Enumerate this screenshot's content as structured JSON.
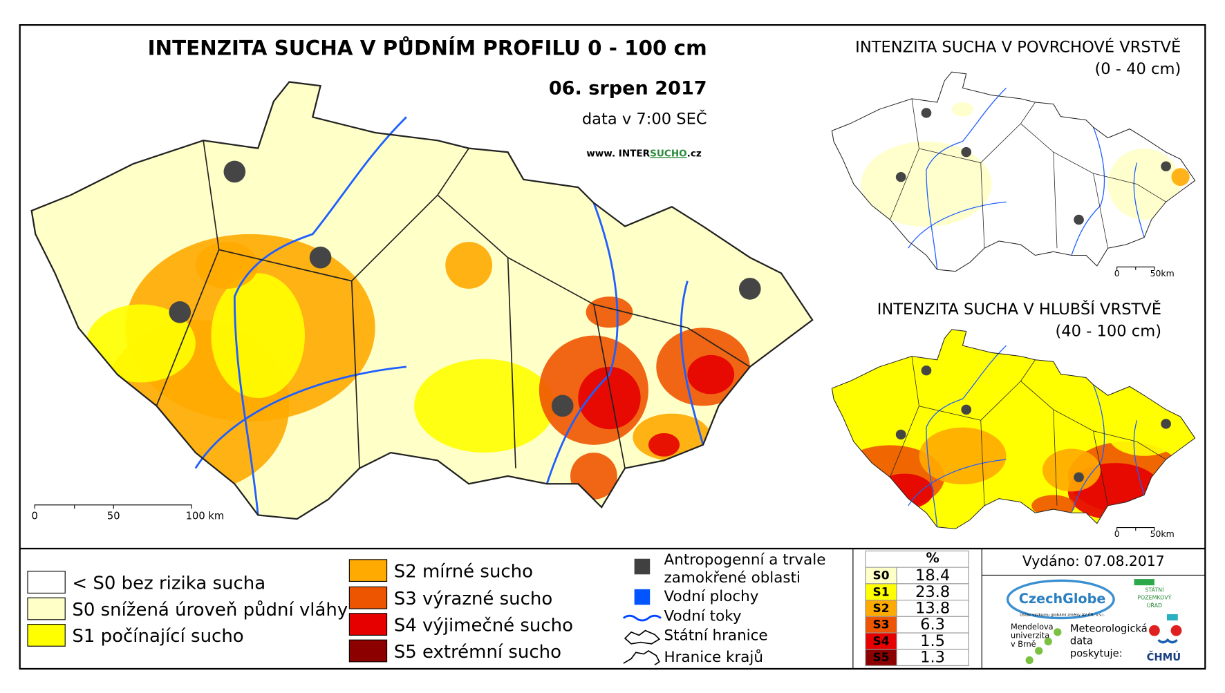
{
  "main_map": {
    "title": "INTENZITA SUCHA V PŮDNÍM PROFILU 0 - 100 cm",
    "date": "06. srpen 2017",
    "time": "data v 7:00 SEČ",
    "website": [
      "www. INTER",
      "SUCHO",
      ".cz"
    ],
    "scale": [
      "0",
      "50",
      "100 km"
    ]
  },
  "surface_map": {
    "title": "INTENZITA SUCHA V POVRCHOVÉ VRSTVĚ",
    "subtitle": "(0 - 40 cm)",
    "scale": [
      "0",
      "50km"
    ]
  },
  "deep_map": {
    "title": "INTENZITA SUCHA V HLUBŠÍ VRSTVĚ",
    "subtitle": "(40 - 100 cm)",
    "scale": [
      "0",
      "50km"
    ]
  },
  "legend": {
    "classes": [
      {
        "label": "< S0 bez rizika sucha",
        "color": "#ffffff"
      },
      {
        "label": "S0 snížená úroveň půdní vláhy",
        "color": "#ffffc8"
      },
      {
        "label": "S1 počínající sucho",
        "color": "#ffff00"
      },
      {
        "label": "S2 mírné sucho",
        "color": "#ffaa00"
      },
      {
        "label": "S3 výrazné sucho",
        "color": "#ee5500"
      },
      {
        "label": "S4 výjimečné sucho",
        "color": "#e60000"
      },
      {
        "label": "S5 extrémní sucho",
        "color": "#8c0000"
      }
    ],
    "features": [
      "Antropogenní a trvale",
      "zamokřené oblasti",
      "Vodní plochy",
      "Vodní toky",
      "Státní hranice",
      "Hranice krajů"
    ]
  },
  "stats_table": {
    "header": "%",
    "rows": [
      {
        "class": "S0",
        "percent": 18.4,
        "color": "#ffffc8"
      },
      {
        "class": "S1",
        "percent": 23.8,
        "color": "#ffff00"
      },
      {
        "class": "S2",
        "percent": 13.8,
        "color": "#ffaa00"
      },
      {
        "class": "S3",
        "percent": 6.3,
        "color": "#ee5500"
      },
      {
        "class": "S4",
        "percent": 1.5,
        "color": "#e60000"
      },
      {
        "class": "S5",
        "percent": 1.3,
        "color": "#8c0000"
      }
    ]
  },
  "issued": "Vydáno: 07.08.2017",
  "logos": {
    "czechglobe": "CzechGlobe",
    "czechglobe_sub": "Ústav výzkumu globální změny AV ČR, v.v.i.",
    "spu": [
      "STÁTNÍ",
      "POZEMKOVÝ",
      "ÚŘAD"
    ],
    "mendelu": [
      "Mendelova",
      "univerzita",
      "v Brně"
    ],
    "meteo": [
      "Meteorologická",
      "data",
      "poskytuje:"
    ],
    "chmu": "ČHMÚ"
  }
}
